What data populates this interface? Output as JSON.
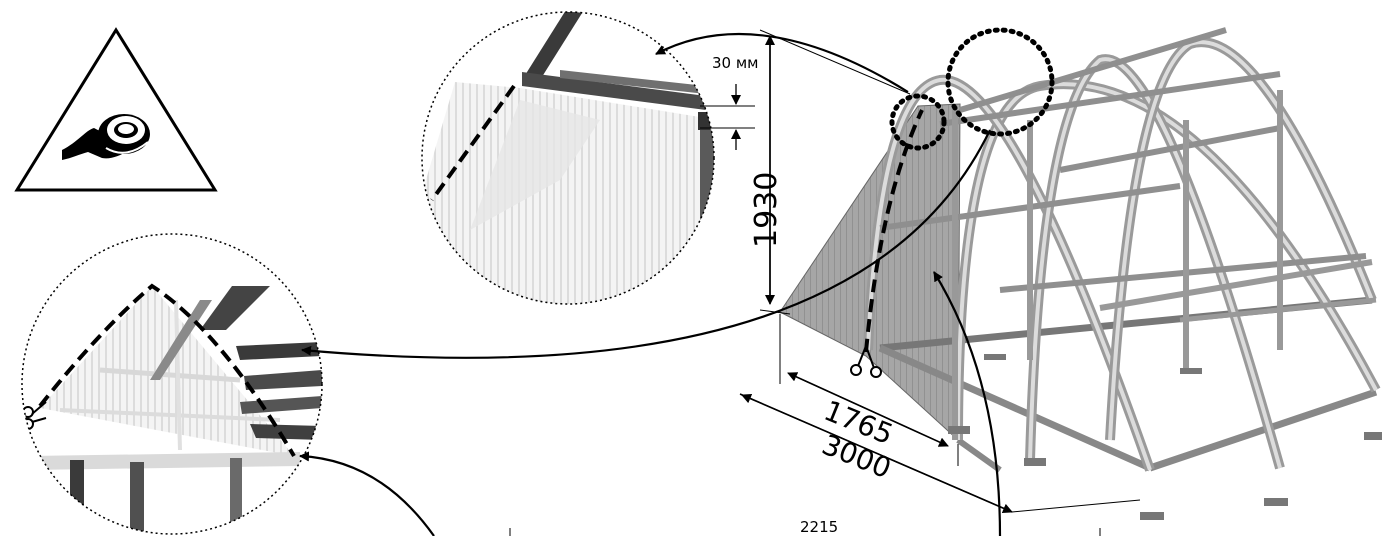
{
  "dimensions": {
    "height_mm": "1930",
    "gap_label": "30 мм",
    "sheet_width_mm": "1765",
    "length_mm": "3000",
    "bottom_mm": "2215"
  },
  "icons": {
    "warning": "tape-warning-icon",
    "scissors": "scissors-icon"
  },
  "colors": {
    "frame": "#3a3a3a",
    "sheet": "#9a9a9a",
    "outline": "#000000"
  }
}
